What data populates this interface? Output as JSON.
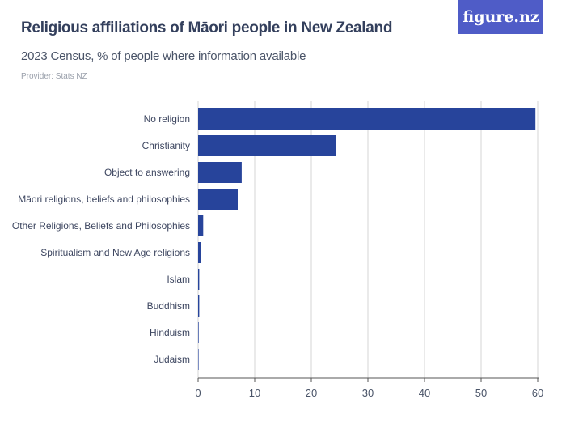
{
  "header": {
    "title": "Religious affiliations of Māori people in New Zealand",
    "subtitle": "2023 Census, % of people where information available",
    "provider": "Provider: Stats NZ",
    "logo": "figure.nz"
  },
  "colors": {
    "bar": "#27449b",
    "grid": "#d4d4d4",
    "axis": "#555555",
    "logo_bg": "#4f5cc7"
  },
  "chart_data": {
    "type": "bar",
    "orientation": "horizontal",
    "categories": [
      "No religion",
      "Christianity",
      "Object to answering",
      "Māori religions, beliefs and philosophies",
      "Other Religions, Beliefs and Philosophies",
      "Spiritualism and New Age religions",
      "Islam",
      "Buddhism",
      "Hinduism",
      "Judaism"
    ],
    "values": [
      59.6,
      24.4,
      7.7,
      7.0,
      0.9,
      0.5,
      0.2,
      0.2,
      0.1,
      0.05
    ],
    "xlim": [
      0,
      60
    ],
    "xticks": [
      0,
      10,
      20,
      30,
      40,
      50,
      60
    ],
    "grid": true
  }
}
